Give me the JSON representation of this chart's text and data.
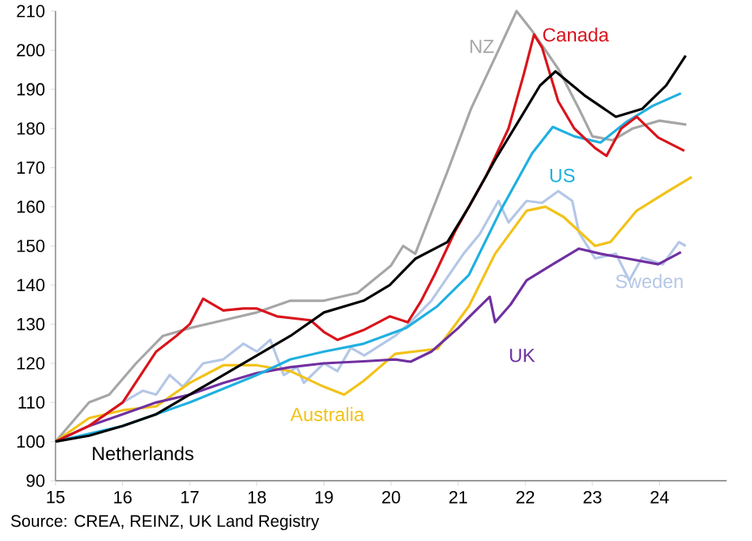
{
  "chart_data": {
    "type": "line",
    "xlim": [
      15,
      25
    ],
    "xticks": [
      15,
      16,
      17,
      18,
      19,
      20,
      21,
      22,
      23,
      24
    ],
    "ylim": [
      90,
      210
    ],
    "yticks": [
      90,
      100,
      110,
      120,
      130,
      140,
      150,
      160,
      170,
      180,
      190,
      200,
      210
    ],
    "grid": false,
    "legend": false,
    "line_style": "solid",
    "marker": "none",
    "annotations": [
      "Source: CREA, REINZ, UK Land Registry"
    ],
    "series": [
      {
        "name": "NZ",
        "color": "#a6a6a6",
        "x": [
          15,
          15.5,
          15.8,
          16.2,
          16.6,
          17,
          17.5,
          18,
          18.5,
          19,
          19.5,
          20,
          20.18,
          20.36,
          20.84,
          21.19,
          21.6,
          21.87,
          22.1,
          22.5,
          22.8,
          23,
          23.3,
          23.6,
          24,
          24.4
        ],
        "values": [
          100,
          110,
          112,
          120,
          127,
          129,
          131,
          133,
          136,
          136,
          138,
          145,
          150,
          148,
          169,
          185,
          200,
          210,
          205,
          195,
          185,
          178,
          177,
          180,
          182,
          181
        ]
      },
      {
        "name": "Canada",
        "color": "#d9141b",
        "x": [
          15,
          15.5,
          16,
          16.5,
          16.8,
          17,
          17.2,
          17.5,
          17.8,
          18,
          18.3,
          18.8,
          19,
          19.2,
          19.59,
          19.98,
          20.25,
          20.45,
          20.65,
          20.95,
          21.42,
          21.75,
          21.98,
          22.13,
          22.25,
          22.49,
          22.73,
          23.04,
          23.21,
          23.43,
          23.66,
          23.98,
          24.37
        ],
        "values": [
          100,
          104,
          110,
          123,
          127,
          130,
          136.5,
          133.5,
          134,
          134,
          132,
          131,
          128,
          126,
          128.5,
          132,
          130.5,
          136,
          142.7,
          153.6,
          168,
          180,
          194,
          204,
          200.7,
          187,
          180,
          175,
          173,
          180,
          183,
          177.7,
          174.3
        ]
      },
      {
        "name": "Netherlands",
        "color": "#000000",
        "x": [
          15,
          15.5,
          16,
          16.5,
          17,
          17.5,
          18,
          18.5,
          19,
          19.59,
          19.98,
          20.36,
          20.84,
          21.16,
          21.55,
          21.94,
          22.22,
          22.45,
          22.88,
          23.35,
          23.74,
          24.1,
          24.39
        ],
        "values": [
          100,
          101.5,
          104,
          107,
          112,
          117,
          122,
          127,
          133,
          136,
          140,
          146.7,
          151,
          160,
          172,
          183,
          191,
          194.6,
          188.5,
          183,
          185,
          191,
          198.6
        ]
      },
      {
        "name": "US",
        "color": "#1fb0e0",
        "x": [
          15,
          16,
          17,
          18,
          18.5,
          19,
          19.59,
          20.22,
          20.69,
          21.16,
          21.63,
          22.1,
          22.41,
          22.73,
          23.12,
          23.51,
          23.9,
          24.32
        ],
        "values": [
          100,
          104,
          110,
          117,
          121,
          123,
          125,
          129,
          134.6,
          142.6,
          159,
          173.6,
          180.4,
          178,
          176.4,
          181.7,
          185.8,
          189
        ]
      },
      {
        "name": "Australia",
        "color": "#f2c218",
        "x": [
          15,
          15.5,
          16,
          16.5,
          17,
          17.5,
          18,
          18.5,
          19,
          19.3,
          19.59,
          20.06,
          20.69,
          21.16,
          21.55,
          22.02,
          22.3,
          22.57,
          23.04,
          23.27,
          23.66,
          24.13,
          24.48
        ],
        "values": [
          100,
          106,
          108,
          109,
          115,
          119.5,
          119.5,
          118,
          114,
          112,
          115.5,
          122.4,
          123.7,
          134.6,
          148,
          159,
          160,
          157.4,
          150,
          151,
          159,
          164,
          167.6
        ]
      },
      {
        "name": "UK",
        "color": "#7030a0",
        "x": [
          15,
          15.5,
          16,
          16.5,
          17,
          17.5,
          18,
          18.5,
          19,
          19.59,
          20.06,
          20.29,
          20.6,
          21.0,
          21.16,
          21.47,
          21.55,
          21.78,
          22.02,
          22.41,
          22.8,
          23.12,
          23.51,
          23.98,
          24.32
        ],
        "values": [
          100,
          104,
          107,
          110,
          112,
          115,
          117.5,
          119,
          120,
          120.5,
          121,
          120.4,
          123,
          129,
          131.8,
          137,
          130.5,
          135,
          141.2,
          145.3,
          149.3,
          148,
          146.8,
          145.3,
          148.4
        ]
      },
      {
        "name": "Sweden",
        "color": "#b4c7e7",
        "x": [
          15,
          15.5,
          16,
          16.3,
          16.5,
          16.7,
          16.9,
          17.2,
          17.5,
          17.8,
          18,
          18.2,
          18.4,
          18.6,
          18.7,
          19,
          19.2,
          19.4,
          19.6,
          20.06,
          20.29,
          20.6,
          21.08,
          21.32,
          21.6,
          21.75,
          22.02,
          22.25,
          22.49,
          22.7,
          22.8,
          23.04,
          23.35,
          23.55,
          23.74,
          24.05,
          24.29,
          24.39
        ],
        "values": [
          100,
          104,
          110,
          113,
          112,
          117,
          114,
          120,
          121,
          125,
          123,
          126,
          117,
          119,
          115,
          120,
          118,
          124,
          122,
          127,
          130.5,
          136,
          148,
          153,
          161.5,
          156,
          161.5,
          161,
          164,
          161.5,
          153.4,
          146.8,
          148,
          141.2,
          147,
          145.3,
          151,
          150
        ]
      }
    ]
  }
}
